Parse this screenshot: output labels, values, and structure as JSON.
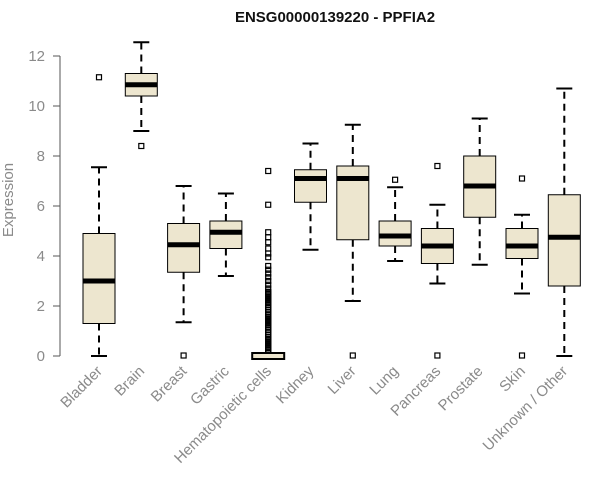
{
  "chart_data": {
    "type": "boxplot",
    "title": "ENSG00000139220 - PPFIA2",
    "xlabel": "",
    "ylabel": "Expression",
    "ylim": [
      0,
      12.5
    ],
    "yticks": [
      0,
      2,
      4,
      6,
      8,
      10,
      12
    ],
    "grid": false,
    "colors": {
      "box_fill": "#ede6cf",
      "box_stroke": "#000000",
      "median": "#000000",
      "axis": "#555555",
      "text": "#8a8a8a"
    },
    "categories": [
      "Bladder",
      "Brain",
      "Breast",
      "Gastric",
      "Hematopoietic cells",
      "Kidney",
      "Liver",
      "Lung",
      "Pancreas",
      "Prostate",
      "Skin",
      "Unknown / Other"
    ],
    "boxes": [
      {
        "name": "Bladder",
        "whisker_low": 0.0,
        "q1": 1.3,
        "median": 3.0,
        "q3": 4.9,
        "whisker_high": 7.55,
        "outliers": [
          11.15
        ]
      },
      {
        "name": "Brain",
        "whisker_low": 9.0,
        "q1": 10.4,
        "median": 10.85,
        "q3": 11.3,
        "whisker_high": 12.55,
        "outliers": [
          8.4
        ]
      },
      {
        "name": "Breast",
        "whisker_low": 1.35,
        "q1": 3.35,
        "median": 4.45,
        "q3": 5.3,
        "whisker_high": 6.8,
        "outliers": [
          0.02
        ]
      },
      {
        "name": "Gastric",
        "whisker_low": 3.2,
        "q1": 4.3,
        "median": 4.95,
        "q3": 5.4,
        "whisker_high": 6.5,
        "outliers": []
      },
      {
        "name": "Hematopoietic cells",
        "whisker_low": 0.0,
        "q1": 0.0,
        "median": 0.0,
        "q3": 0.0,
        "whisker_high": 0.0,
        "outliers": [
          7.4,
          6.05,
          4.95,
          4.75,
          4.55,
          4.3,
          4.1,
          3.95,
          3.6,
          3.45,
          3.3,
          3.15,
          3.0,
          2.85,
          2.7,
          2.55,
          2.45,
          2.35,
          2.25,
          2.15,
          2.05,
          1.95,
          1.85,
          1.75,
          1.65,
          1.55,
          1.45,
          1.35,
          1.25,
          1.15,
          1.05,
          0.95,
          0.85,
          0.75,
          0.65,
          0.55,
          0.45,
          0.35,
          0.25,
          0.15
        ]
      },
      {
        "name": "Kidney",
        "whisker_low": 4.25,
        "q1": 6.15,
        "median": 7.1,
        "q3": 7.45,
        "whisker_high": 8.5,
        "outliers": []
      },
      {
        "name": "Liver",
        "whisker_low": 2.2,
        "q1": 4.65,
        "median": 7.1,
        "q3": 7.6,
        "whisker_high": 9.25,
        "outliers": [
          0.02
        ]
      },
      {
        "name": "Lung",
        "whisker_low": 3.8,
        "q1": 4.4,
        "median": 4.8,
        "q3": 5.4,
        "whisker_high": 6.75,
        "outliers": [
          7.05
        ]
      },
      {
        "name": "Pancreas",
        "whisker_low": 2.9,
        "q1": 3.7,
        "median": 4.4,
        "q3": 5.1,
        "whisker_high": 6.05,
        "outliers": [
          7.6,
          0.02
        ]
      },
      {
        "name": "Prostate",
        "whisker_low": 3.65,
        "q1": 5.55,
        "median": 6.8,
        "q3": 8.0,
        "whisker_high": 9.5,
        "outliers": []
      },
      {
        "name": "Skin",
        "whisker_low": 2.5,
        "q1": 3.9,
        "median": 4.4,
        "q3": 5.1,
        "whisker_high": 5.65,
        "outliers": [
          7.1,
          0.02
        ]
      },
      {
        "name": "Unknown / Other",
        "whisker_low": 0.0,
        "q1": 2.8,
        "median": 4.75,
        "q3": 6.45,
        "whisker_high": 10.7,
        "outliers": []
      }
    ]
  }
}
